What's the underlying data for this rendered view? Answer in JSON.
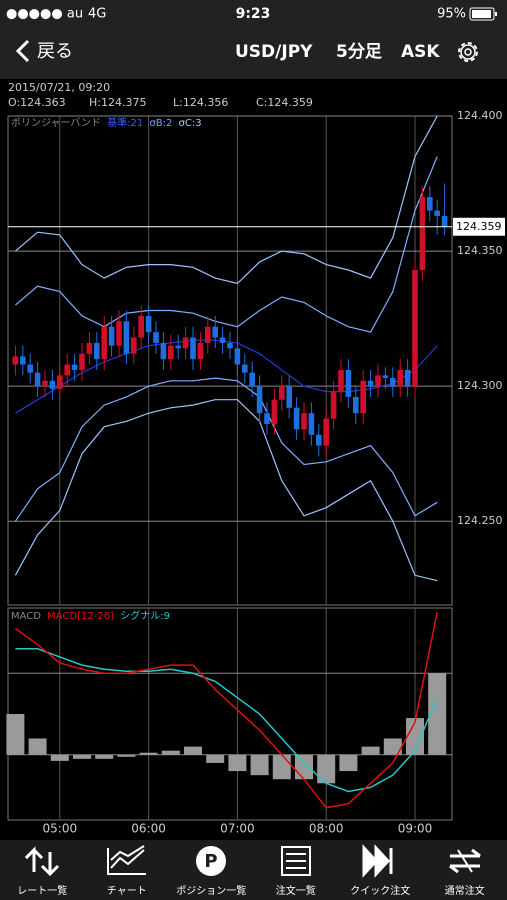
{
  "status_bar": {
    "carrier": "●●●●● au",
    "network": "4G",
    "time": "9:23",
    "battery": "95%"
  },
  "nav": {
    "back": "戻る",
    "symbol": "USD/JPY",
    "interval": "5分足",
    "side": "ASK"
  },
  "info": {
    "datetime": "2015/07/21, 09:20",
    "open": "O:124.363",
    "high": "H:124.375",
    "low": "L:124.356",
    "close": "C:124.359"
  },
  "chart": {
    "type": "candlestick",
    "indicator": "ボリンジャーバンド",
    "indicator_params": [
      "基準:21",
      "σB:2",
      "σC:3"
    ],
    "indicator_param_colors": [
      "#3a5cff",
      "#6fa8ff",
      "#9fc8ff"
    ],
    "xlim": [
      265,
      565
    ],
    "xticks": [
      {
        "value": 300,
        "label": "05:00"
      },
      {
        "value": 360,
        "label": "06:00"
      },
      {
        "value": 420,
        "label": "07:00"
      },
      {
        "value": 480,
        "label": "08:00"
      },
      {
        "value": 540,
        "label": "09:00"
      }
    ],
    "ylim": [
      124.219,
      124.4
    ],
    "yticks": [
      {
        "value": 124.4,
        "label": "124.400"
      },
      {
        "value": 124.35,
        "label": "124.350"
      },
      {
        "value": 124.3,
        "label": "124.300"
      },
      {
        "value": 124.25,
        "label": "124.250"
      }
    ],
    "grid": true,
    "up_color": "#d0102a",
    "down_color": "#1f6fe0",
    "last_price": {
      "value": 124.359,
      "label": "124.359"
    },
    "candles": {
      "x": [
        270,
        275,
        280,
        285,
        290,
        295,
        300,
        305,
        310,
        315,
        320,
        325,
        330,
        335,
        340,
        345,
        350,
        355,
        360,
        365,
        370,
        375,
        380,
        385,
        390,
        395,
        400,
        405,
        410,
        415,
        420,
        425,
        430,
        435,
        440,
        445,
        450,
        455,
        460,
        465,
        470,
        475,
        480,
        485,
        490,
        495,
        500,
        505,
        510,
        515,
        520,
        525,
        530,
        535,
        540,
        545,
        550,
        555,
        560
      ],
      "open": [
        124.308,
        124.311,
        124.308,
        124.305,
        124.3,
        124.302,
        124.299,
        124.304,
        124.308,
        124.306,
        124.312,
        124.316,
        124.31,
        124.322,
        124.315,
        124.324,
        124.312,
        124.318,
        124.326,
        124.32,
        124.316,
        124.31,
        124.315,
        124.314,
        124.318,
        124.31,
        124.316,
        124.322,
        124.318,
        124.316,
        124.314,
        124.308,
        124.305,
        124.3,
        124.29,
        124.286,
        124.295,
        124.3,
        124.292,
        124.284,
        124.29,
        124.282,
        124.278,
        124.288,
        124.298,
        124.306,
        124.296,
        124.29,
        124.302,
        124.3,
        124.304,
        124.303,
        124.3,
        124.306,
        124.3,
        124.343,
        124.37,
        124.365,
        124.363
      ],
      "high": [
        124.315,
        124.315,
        124.312,
        124.309,
        124.306,
        124.306,
        124.308,
        124.312,
        124.312,
        124.316,
        124.32,
        124.32,
        124.326,
        124.326,
        124.328,
        124.328,
        124.322,
        124.33,
        124.33,
        124.324,
        124.32,
        124.319,
        124.319,
        124.322,
        124.322,
        124.32,
        124.326,
        124.326,
        124.322,
        124.32,
        124.318,
        124.312,
        124.309,
        124.304,
        124.294,
        124.299,
        124.304,
        124.304,
        124.296,
        124.294,
        124.294,
        124.286,
        124.292,
        124.302,
        124.31,
        124.31,
        124.3,
        124.306,
        124.306,
        124.308,
        124.307,
        124.307,
        124.31,
        124.31,
        124.347,
        124.374,
        124.374,
        124.369,
        124.375
      ],
      "low": [
        124.304,
        124.304,
        124.301,
        124.296,
        124.296,
        124.295,
        124.295,
        124.3,
        124.302,
        124.302,
        124.308,
        124.306,
        124.306,
        124.311,
        124.311,
        124.308,
        124.308,
        124.314,
        124.316,
        124.312,
        124.306,
        124.306,
        124.31,
        124.31,
        124.306,
        124.306,
        124.312,
        124.314,
        124.312,
        124.31,
        124.304,
        124.301,
        124.296,
        124.286,
        124.282,
        124.282,
        124.291,
        124.288,
        124.28,
        124.28,
        124.278,
        124.274,
        124.274,
        124.284,
        124.294,
        124.292,
        124.286,
        124.286,
        124.296,
        124.296,
        124.299,
        124.296,
        124.296,
        124.296,
        124.296,
        124.339,
        124.361,
        124.356,
        124.356
      ],
      "close": [
        124.311,
        124.308,
        124.305,
        124.3,
        124.302,
        124.299,
        124.304,
        124.308,
        124.306,
        124.312,
        124.316,
        124.31,
        124.322,
        124.315,
        124.324,
        124.312,
        124.318,
        124.326,
        124.32,
        124.316,
        124.31,
        124.315,
        124.314,
        124.318,
        124.31,
        124.316,
        124.322,
        124.318,
        124.316,
        124.314,
        124.308,
        124.305,
        124.3,
        124.29,
        124.286,
        124.295,
        124.3,
        124.292,
        124.284,
        124.29,
        124.282,
        124.278,
        124.288,
        124.298,
        124.306,
        124.296,
        124.29,
        124.302,
        124.3,
        124.304,
        124.303,
        124.3,
        124.306,
        124.3,
        124.343,
        124.37,
        124.365,
        124.363,
        124.359
      ]
    },
    "band_x": [
      270,
      285,
      300,
      315,
      330,
      345,
      360,
      375,
      390,
      405,
      420,
      435,
      450,
      465,
      480,
      495,
      510,
      525,
      540,
      555
    ],
    "bands": [
      {
        "color": "#9cc4ff",
        "values": [
          124.35,
          124.357,
          124.356,
          124.345,
          124.34,
          124.344,
          124.345,
          124.345,
          124.344,
          124.34,
          124.338,
          124.346,
          124.35,
          124.349,
          124.345,
          124.343,
          124.34,
          124.355,
          124.385,
          124.4
        ]
      },
      {
        "color": "#7fb0ff",
        "values": [
          124.33,
          124.337,
          124.335,
          124.326,
          124.322,
          124.327,
          124.328,
          124.328,
          124.327,
          124.324,
          124.322,
          124.328,
          124.333,
          124.331,
          124.326,
          124.322,
          124.32,
          124.335,
          124.365,
          124.385
        ]
      },
      {
        "color": "#2438d8",
        "values": [
          124.29,
          124.295,
          124.3,
          124.305,
          124.309,
          124.312,
          124.315,
          124.316,
          124.317,
          124.317,
          124.316,
          124.312,
          124.306,
          124.3,
          124.298,
          124.298,
          124.299,
          124.301,
          124.306,
          124.315
        ]
      },
      {
        "color": "#7fb0ff",
        "values": [
          124.25,
          124.262,
          124.268,
          124.285,
          124.293,
          124.296,
          124.3,
          124.302,
          124.302,
          124.303,
          124.302,
          124.296,
          124.279,
          124.271,
          124.272,
          124.275,
          124.278,
          124.268,
          124.252,
          124.257
        ]
      },
      {
        "color": "#9cc4ff",
        "values": [
          124.23,
          124.245,
          124.254,
          124.275,
          124.285,
          124.287,
          124.29,
          124.292,
          124.293,
          124.295,
          124.295,
          124.287,
          124.265,
          124.252,
          124.255,
          124.26,
          124.265,
          124.25,
          124.23,
          124.228
        ]
      }
    ],
    "macd": {
      "label": "MACD",
      "params": "MACD[12-26]",
      "signal_label": "シグナル:9",
      "ylim": [
        -0.016,
        0.036
      ],
      "gridlines": [
        0,
        0.02
      ],
      "x": [
        270,
        285,
        300,
        315,
        330,
        345,
        360,
        375,
        390,
        405,
        420,
        435,
        450,
        465,
        480,
        495,
        510,
        525,
        540,
        555
      ],
      "macd_color": "#e01010",
      "macd_values": [
        0.031,
        0.027,
        0.0225,
        0.021,
        0.02,
        0.02,
        0.021,
        0.022,
        0.022,
        0.016,
        0.011,
        0.006,
        0.0,
        -0.006,
        -0.013,
        -0.012,
        -0.007,
        -0.002,
        0.008,
        0.035
      ],
      "signal_color": "#27c8c8",
      "signal_values": [
        0.026,
        0.026,
        0.024,
        0.022,
        0.021,
        0.0205,
        0.0205,
        0.021,
        0.02,
        0.018,
        0.014,
        0.01,
        0.004,
        -0.002,
        -0.007,
        -0.009,
        -0.008,
        -0.005,
        0.001,
        0.014
      ],
      "histogram_color": "#9a9a9a",
      "histogram_values": [
        0.01,
        0.004,
        -0.0015,
        -0.001,
        -0.001,
        -0.0005,
        0.0005,
        0.001,
        0.002,
        -0.002,
        -0.004,
        -0.005,
        -0.006,
        -0.006,
        -0.007,
        -0.004,
        0.002,
        0.004,
        0.009,
        0.02
      ]
    }
  },
  "tabs": [
    "レート一覧",
    "チャート",
    "ポジション一覧",
    "注文一覧",
    "クイック注文",
    "通常注文"
  ]
}
